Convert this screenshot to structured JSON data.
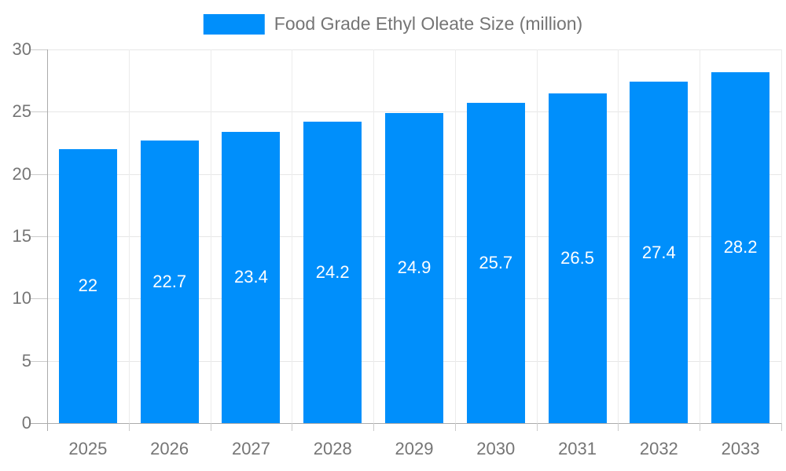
{
  "legend": {
    "label": "Food Grade Ethyl Oleate Size (million)"
  },
  "chart_data": {
    "type": "bar",
    "title": "Food Grade Ethyl Oleate Size (million)",
    "categories": [
      "2025",
      "2026",
      "2027",
      "2028",
      "2029",
      "2030",
      "2031",
      "2032",
      "2033"
    ],
    "values": [
      22,
      22.7,
      23.4,
      24.2,
      24.9,
      25.7,
      26.5,
      27.4,
      28.2
    ],
    "value_labels": [
      "22",
      "22.7",
      "23.4",
      "24.2",
      "24.9",
      "25.7",
      "26.5",
      "27.4",
      "28.2"
    ],
    "xlabel": "",
    "ylabel": "",
    "ylim": [
      0,
      30
    ],
    "yticks": [
      0,
      5,
      10,
      15,
      20,
      25,
      30
    ],
    "grid": true,
    "legend_position": "top-center",
    "bar_color": "#008FFB",
    "value_label_color": "#ffffff",
    "axis_text_color": "#757575"
  }
}
